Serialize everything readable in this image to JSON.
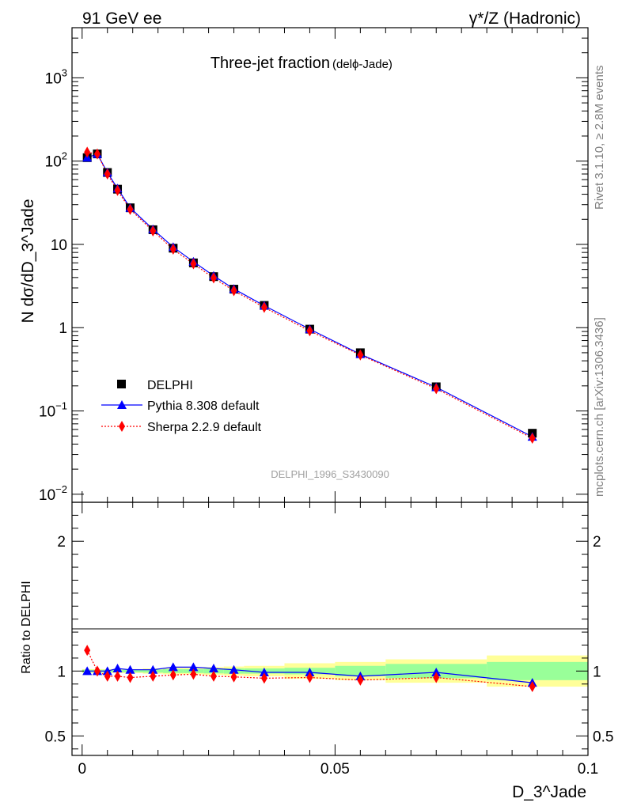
{
  "header": {
    "left": "91 GeV ee",
    "right": "γ*/Z (Hadronic)"
  },
  "title": {
    "main": "Three-jet fraction",
    "sub": "(delϕ-Jade)"
  },
  "watermark": "DELPHI_1996_S3430090",
  "side_text": {
    "upper": "Rivet 3.1.10, ≥ 2.8M events",
    "lower": "mcplots.cern.ch [arXiv:1306.3436]"
  },
  "axes": {
    "ylabel": "N dσ/dD_3^Jade",
    "xlabel": "D_3^Jade",
    "ratio_ylabel": "Ratio to DELPHI"
  },
  "legend": [
    {
      "label": "DELPHI",
      "color": "#000000",
      "marker": "square"
    },
    {
      "label": "Pythia 8.308 default",
      "color": "#0000ff",
      "marker": "triangle"
    },
    {
      "label": "Sherpa 2.2.9 default",
      "color": "#ff0000",
      "marker": "diamond"
    }
  ],
  "chart_data": {
    "type": "line",
    "xlim": [
      -0.002,
      0.1
    ],
    "ylim": [
      0.008,
      4000
    ],
    "yscale": "log",
    "ratio_ylim": [
      0.35,
      2.3
    ],
    "x_ticks": [
      "0",
      "0.05",
      "0.1"
    ],
    "y_ticks": [
      "10^-2",
      "10^-1",
      "1",
      "10",
      "10^2",
      "10^3"
    ],
    "ratio_ticks": [
      "0.5",
      "1",
      "2"
    ],
    "x": [
      0.001,
      0.003,
      0.005,
      0.007,
      0.0095,
      0.014,
      0.018,
      0.022,
      0.026,
      0.03,
      0.036,
      0.045,
      0.055,
      0.07,
      0.089
    ],
    "series": [
      {
        "name": "DELPHI",
        "values": [
          110,
          122,
          73,
          46,
          27.5,
          15,
          9.0,
          6.0,
          4.1,
          2.9,
          1.85,
          0.96,
          0.5,
          0.195,
          0.054
        ]
      },
      {
        "name": "Pythia 8.308 default",
        "values": [
          110,
          122,
          73,
          47,
          27.5,
          15.2,
          9.3,
          6.2,
          4.2,
          2.92,
          1.84,
          0.96,
          0.48,
          0.193,
          0.049
        ]
      },
      {
        "name": "Sherpa 2.2.9 default",
        "values": [
          128,
          122,
          70,
          44.5,
          26.3,
          14.5,
          8.75,
          5.85,
          3.95,
          2.78,
          1.75,
          0.915,
          0.47,
          0.185,
          0.047
        ]
      }
    ],
    "ratio_series": [
      {
        "name": "Pythia 8.308 default",
        "values": [
          1.0,
          1.0,
          1.0,
          1.02,
          1.01,
          1.01,
          1.03,
          1.03,
          1.02,
          1.01,
          0.99,
          0.99,
          0.96,
          0.99,
          0.91
        ]
      },
      {
        "name": "Sherpa 2.2.9 default",
        "values": [
          1.16,
          1.0,
          0.96,
          0.96,
          0.95,
          0.96,
          0.97,
          0.975,
          0.96,
          0.955,
          0.945,
          0.95,
          0.93,
          0.95,
          0.88
        ]
      }
    ],
    "uncertainty_bands": {
      "edges": [
        0.0,
        0.002,
        0.004,
        0.006,
        0.008,
        0.012,
        0.016,
        0.02,
        0.024,
        0.028,
        0.032,
        0.04,
        0.05,
        0.06,
        0.08,
        0.1
      ],
      "inner_half_width": [
        0.01,
        0.01,
        0.01,
        0.01,
        0.01,
        0.012,
        0.015,
        0.015,
        0.018,
        0.02,
        0.02,
        0.025,
        0.04,
        0.055,
        0.07
      ],
      "outer_half_width": [
        0.015,
        0.015,
        0.015,
        0.015,
        0.015,
        0.02,
        0.025,
        0.025,
        0.03,
        0.035,
        0.04,
        0.06,
        0.07,
        0.09,
        0.12
      ],
      "inner_color": "#99ff99",
      "outer_color": "#ffff99"
    }
  }
}
